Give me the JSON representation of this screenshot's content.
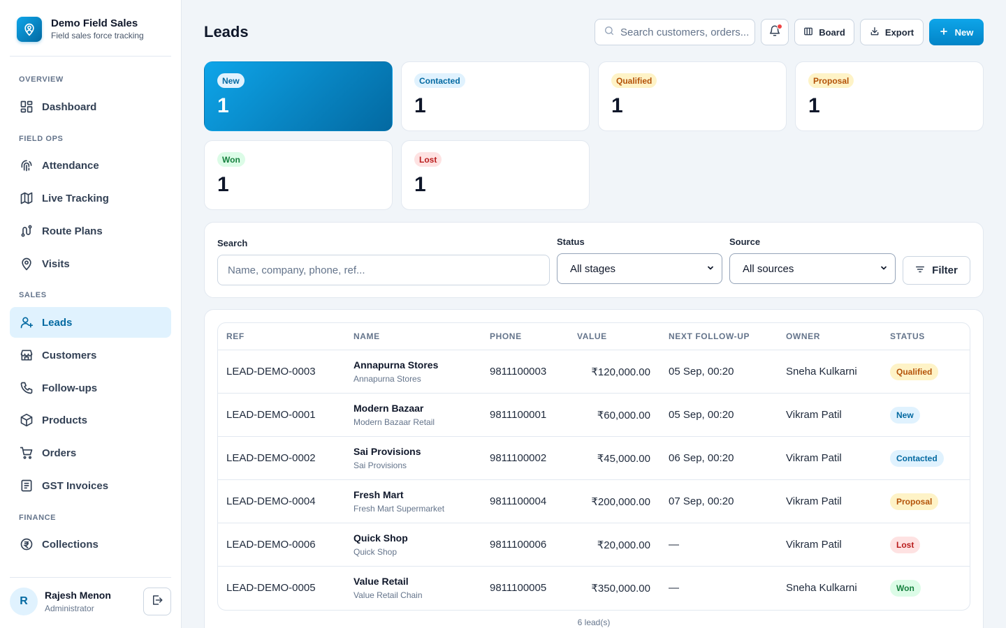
{
  "brand": {
    "title": "Demo Field Sales",
    "subtitle": "Field sales force tracking"
  },
  "nav": {
    "sections": [
      {
        "label": "OVERVIEW",
        "items": [
          {
            "label": "Dashboard",
            "icon": "dashboard-icon"
          }
        ]
      },
      {
        "label": "FIELD OPS",
        "items": [
          {
            "label": "Attendance",
            "icon": "fingerprint-icon"
          },
          {
            "label": "Live Tracking",
            "icon": "map-icon"
          },
          {
            "label": "Route Plans",
            "icon": "route-icon"
          },
          {
            "label": "Visits",
            "icon": "location-pin-icon"
          }
        ]
      },
      {
        "label": "SALES",
        "items": [
          {
            "label": "Leads",
            "icon": "user-plus-icon",
            "active": true
          },
          {
            "label": "Customers",
            "icon": "store-icon"
          },
          {
            "label": "Follow-ups",
            "icon": "phone-icon"
          },
          {
            "label": "Products",
            "icon": "box-icon"
          },
          {
            "label": "Orders",
            "icon": "cart-icon"
          },
          {
            "label": "GST Invoices",
            "icon": "invoice-icon"
          }
        ]
      },
      {
        "label": "FINANCE",
        "items": [
          {
            "label": "Collections",
            "icon": "rupee-coin-icon"
          }
        ]
      }
    ]
  },
  "user": {
    "initial": "R",
    "name": "Rajesh Menon",
    "role": "Administrator"
  },
  "header": {
    "title": "Leads",
    "search_placeholder": "Search customers, orders...",
    "board_label": "Board",
    "export_label": "Export",
    "new_label": "New"
  },
  "stats": [
    {
      "label": "New",
      "count": "1",
      "active": true
    },
    {
      "label": "Contacted",
      "count": "1"
    },
    {
      "label": "Qualified",
      "count": "1"
    },
    {
      "label": "Proposal",
      "count": "1"
    },
    {
      "label": "Won",
      "count": "1"
    },
    {
      "label": "Lost",
      "count": "1"
    }
  ],
  "filters": {
    "search_label": "Search",
    "search_placeholder": "Name, company, phone, ref...",
    "status_label": "Status",
    "status_value": "All stages",
    "source_label": "Source",
    "source_value": "All sources",
    "filter_button": "Filter"
  },
  "table": {
    "columns": [
      "REF",
      "NAME",
      "PHONE",
      "VALUE",
      "NEXT FOLLOW-UP",
      "OWNER",
      "STATUS"
    ],
    "rows": [
      {
        "ref": "LEAD-DEMO-0003",
        "name": "Annapurna Stores",
        "company": "Annapurna Stores",
        "phone": "9811100003",
        "value": "₹120,000.00",
        "follow_up": "05 Sep, 00:20",
        "owner": "Sneha Kulkarni",
        "status": "Qualified"
      },
      {
        "ref": "LEAD-DEMO-0001",
        "name": "Modern Bazaar",
        "company": "Modern Bazaar Retail",
        "phone": "9811100001",
        "value": "₹60,000.00",
        "follow_up": "05 Sep, 00:20",
        "owner": "Vikram Patil",
        "status": "New"
      },
      {
        "ref": "LEAD-DEMO-0002",
        "name": "Sai Provisions",
        "company": "Sai Provisions",
        "phone": "9811100002",
        "value": "₹45,000.00",
        "follow_up": "06 Sep, 00:20",
        "owner": "Vikram Patil",
        "status": "Contacted"
      },
      {
        "ref": "LEAD-DEMO-0004",
        "name": "Fresh Mart",
        "company": "Fresh Mart Supermarket",
        "phone": "9811100004",
        "value": "₹200,000.00",
        "follow_up": "07 Sep, 00:20",
        "owner": "Vikram Patil",
        "status": "Proposal"
      },
      {
        "ref": "LEAD-DEMO-0006",
        "name": "Quick Shop",
        "company": "Quick Shop",
        "phone": "9811100006",
        "value": "₹20,000.00",
        "follow_up": "—",
        "owner": "Vikram Patil",
        "status": "Lost"
      },
      {
        "ref": "LEAD-DEMO-0005",
        "name": "Value Retail",
        "company": "Value Retail Chain",
        "phone": "9811100005",
        "value": "₹350,000.00",
        "follow_up": "—",
        "owner": "Sneha Kulkarni",
        "status": "Won"
      }
    ],
    "count_label": "6 lead(s)"
  },
  "status_colors": {
    "New": {
      "bg": "#e0f2fe",
      "fg": "#0369a1"
    },
    "Contacted": {
      "bg": "#e0f2fe",
      "fg": "#0369a1"
    },
    "Qualified": {
      "bg": "#fef3c7",
      "fg": "#b45309"
    },
    "Proposal": {
      "bg": "#fef3c7",
      "fg": "#b45309"
    },
    "Won": {
      "bg": "#dcfce7",
      "fg": "#15803d"
    },
    "Lost": {
      "bg": "#fee2e2",
      "fg": "#b91c1c"
    }
  },
  "accent": "#0284c7"
}
